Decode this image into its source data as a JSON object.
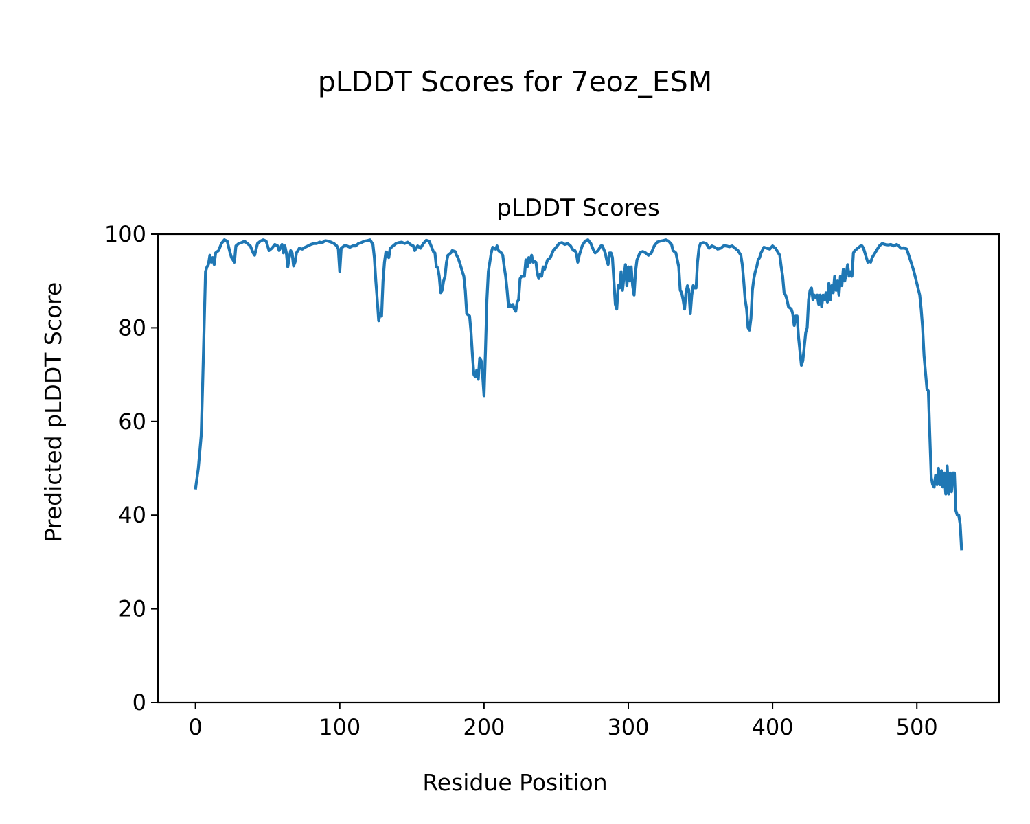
{
  "chart_data": {
    "type": "line",
    "suptitle": "pLDDT Scores for 7eoz_ESM",
    "title": "pLDDT Scores",
    "xlabel": "Residue Position",
    "ylabel": "Predicted pLDDT Score",
    "xlim": [
      -26,
      557
    ],
    "ylim": [
      0,
      100
    ],
    "xticks": [
      0,
      100,
      200,
      300,
      400,
      500
    ],
    "yticks": [
      0,
      20,
      40,
      60,
      80,
      100
    ],
    "grid": false,
    "legend": "none",
    "series_color": "#1f77b4",
    "series": [
      {
        "x": [
          0,
          2,
          4,
          5,
          6,
          7,
          8,
          9,
          10,
          11,
          12,
          13,
          14,
          16,
          18,
          20,
          22,
          24,
          25,
          26,
          27,
          28,
          30,
          32,
          34,
          36,
          38,
          40,
          41,
          43,
          45,
          47,
          49,
          51,
          53,
          55,
          57,
          58,
          60,
          61,
          62,
          63,
          64,
          65,
          66,
          67,
          68,
          69,
          70,
          72,
          74,
          76,
          78,
          80,
          82,
          84,
          86,
          88,
          90,
          92,
          94,
          96,
          98,
          99,
          100,
          101,
          103,
          105,
          107,
          109,
          111,
          113,
          115,
          117,
          119,
          121,
          123,
          124,
          125,
          126,
          127,
          128,
          129,
          130,
          131,
          132,
          133,
          134,
          135,
          137,
          139,
          141,
          143,
          145,
          147,
          149,
          151,
          152,
          154,
          156,
          158,
          160,
          162,
          164,
          165,
          166,
          167,
          168,
          169,
          170,
          171,
          172,
          173,
          174,
          175,
          177,
          178,
          180,
          181,
          182,
          183,
          184,
          185,
          186,
          187,
          188,
          190,
          191,
          192,
          193,
          194,
          195,
          196,
          197,
          198,
          199,
          200,
          201,
          202,
          203,
          204,
          205,
          206,
          207,
          208,
          209,
          210,
          211,
          212,
          213,
          214,
          215,
          216,
          217,
          218,
          219,
          220,
          221,
          222,
          223,
          224,
          225,
          226,
          227,
          228,
          229,
          230,
          231,
          232,
          233,
          234,
          235,
          236,
          237,
          238,
          239,
          240,
          241,
          242,
          244,
          246,
          248,
          250,
          252,
          254,
          256,
          258,
          260,
          261,
          262,
          263,
          264,
          265,
          266,
          268,
          270,
          272,
          274,
          276,
          277,
          279,
          281,
          282,
          284,
          285,
          286,
          287,
          288,
          289,
          290,
          291,
          292,
          293,
          294,
          295,
          296,
          297,
          298,
          299,
          300,
          301,
          302,
          303,
          304,
          305,
          306,
          308,
          310,
          312,
          314,
          316,
          318,
          320,
          322,
          324,
          326,
          328,
          330,
          331,
          333,
          335,
          336,
          337,
          338,
          339,
          340,
          341,
          342,
          343,
          344,
          345,
          346,
          347,
          348,
          349,
          350,
          352,
          354,
          356,
          358,
          360,
          362,
          364,
          366,
          368,
          370,
          372,
          374,
          376,
          378,
          379,
          380,
          381,
          382,
          383,
          384,
          385,
          386,
          387,
          388,
          389,
          390,
          391,
          392,
          394,
          396,
          398,
          400,
          402,
          404,
          405,
          406,
          407,
          408,
          409,
          410,
          411,
          413,
          414,
          415,
          416,
          417,
          418,
          419,
          420,
          421,
          422,
          423,
          424,
          425,
          426,
          427,
          428,
          429,
          430,
          431,
          432,
          433,
          434,
          435,
          436,
          437,
          438,
          439,
          440,
          441,
          442,
          443,
          444,
          445,
          446,
          447,
          448,
          449,
          450,
          451,
          452,
          453,
          454,
          455,
          456,
          457,
          459,
          461,
          462,
          463,
          464,
          465,
          466,
          467,
          468,
          469,
          470,
          471,
          472,
          474,
          476,
          478,
          480,
          482,
          484,
          486,
          487,
          489,
          491,
          493,
          496,
          498,
          500,
          502,
          503,
          504,
          505,
          507,
          508,
          509,
          510,
          511,
          512,
          513,
          514,
          515,
          516,
          517,
          518,
          519,
          520,
          521,
          522,
          523,
          524,
          525,
          526,
          527,
          528,
          529,
          530,
          531
        ],
        "y": [
          45.5,
          50,
          57,
          68,
          80,
          92,
          93,
          93.5,
          95.5,
          94,
          95,
          93.5,
          96,
          96.5,
          98,
          98.8,
          98.5,
          96,
          95,
          94.5,
          94,
          97.5,
          98,
          98.2,
          98.5,
          98,
          97.5,
          96,
          95.5,
          98,
          98.5,
          98.8,
          98.5,
          96.5,
          97,
          97.8,
          97.5,
          96.5,
          97.8,
          96,
          97.5,
          96,
          93,
          95,
          96.5,
          96,
          93.2,
          94,
          96,
          97,
          96.8,
          97.2,
          97.5,
          97.8,
          98,
          98,
          98.3,
          98.2,
          98.6,
          98.5,
          98.3,
          98,
          97.5,
          96.8,
          92,
          97,
          97.5,
          97.5,
          97.2,
          97.5,
          97.5,
          98,
          98.2,
          98.5,
          98.6,
          98.8,
          97.8,
          95,
          90,
          86,
          81.5,
          83,
          82.5,
          90,
          94,
          96.2,
          96,
          95,
          97,
          97.5,
          98,
          98.2,
          98.3,
          98,
          98.3,
          97.8,
          97.5,
          96.5,
          97.5,
          97,
          98,
          98.7,
          98.5,
          97,
          96.2,
          96,
          93,
          92.8,
          91,
          87.5,
          88,
          90,
          91,
          94,
          95.5,
          96,
          96.5,
          96.3,
          95.5,
          95,
          94,
          93,
          92,
          91,
          88,
          83,
          82.5,
          79,
          74,
          70,
          69.5,
          71,
          69,
          73.5,
          73,
          70,
          65.5,
          75,
          86,
          92,
          94,
          96,
          97.2,
          97,
          96.8,
          97.5,
          96.5,
          96.2,
          96,
          95.5,
          93,
          91,
          88,
          84.5,
          85,
          84.5,
          85,
          84,
          83.5,
          85.5,
          86,
          90.5,
          91,
          91,
          91,
          94.5,
          93,
          95,
          94,
          95.5,
          94,
          94.2,
          94,
          91.5,
          90.5,
          91.5,
          91,
          93,
          92.5,
          94.5,
          95,
          96.5,
          97.2,
          98,
          98.2,
          97.8,
          98,
          97.5,
          97,
          96.5,
          96.5,
          96,
          94,
          95.5,
          97.5,
          98.5,
          98.8,
          98,
          96.5,
          96,
          96.5,
          97.5,
          97.5,
          96,
          94.5,
          93.5,
          96,
          96,
          95,
          90,
          85,
          84,
          89,
          88.5,
          92,
          88,
          91,
          93.5,
          89,
          93,
          90,
          93,
          89,
          87,
          92,
          94.5,
          96,
          96.3,
          96,
          95.5,
          96,
          97.5,
          98.3,
          98.5,
          98.6,
          98.8,
          98.5,
          97.8,
          96.5,
          96,
          93,
          88,
          87.5,
          86,
          84,
          87.5,
          89,
          88,
          83,
          87,
          89,
          88.5,
          88.5,
          94,
          97,
          98,
          98.2,
          98,
          97,
          97.5,
          97.2,
          96.8,
          97,
          97.5,
          97.5,
          97.3,
          97.5,
          97,
          96.5,
          95.5,
          93.5,
          90,
          86,
          84,
          80,
          79.5,
          82,
          88,
          90.5,
          92,
          93,
          94.5,
          95,
          96,
          97.2,
          97,
          96.8,
          97.5,
          97,
          96,
          95.5,
          93,
          91,
          87.5,
          87,
          86,
          84.5,
          84,
          83,
          80.5,
          82.5,
          82.5,
          78,
          75,
          72,
          73,
          76,
          79,
          80,
          86,
          88,
          88.5,
          86,
          87,
          86.5,
          87,
          85,
          87,
          84.5,
          87,
          86,
          87.5,
          85.5,
          89.5,
          86,
          89,
          87.5,
          91,
          88,
          90,
          87,
          91,
          89,
          92.5,
          90,
          91.5,
          93.5,
          91,
          92,
          91,
          96,
          96.5,
          97,
          97.5,
          97.5,
          97,
          96,
          95,
          94,
          94.3,
          94,
          95,
          95.5,
          96,
          96.5,
          97.5,
          98,
          97.8,
          97.7,
          97.8,
          97.5,
          97.8,
          97.6,
          97,
          97.1,
          96.8,
          94,
          92,
          89.5,
          87,
          84,
          80,
          74,
          67,
          66.5,
          57,
          48,
          46.5,
          46,
          48.5,
          46.5,
          50,
          46.5,
          49.5,
          46,
          49,
          44.5,
          50.5,
          44.5,
          49,
          45,
          49,
          49,
          41,
          40,
          40,
          38,
          32.5
        ]
      }
    ]
  }
}
